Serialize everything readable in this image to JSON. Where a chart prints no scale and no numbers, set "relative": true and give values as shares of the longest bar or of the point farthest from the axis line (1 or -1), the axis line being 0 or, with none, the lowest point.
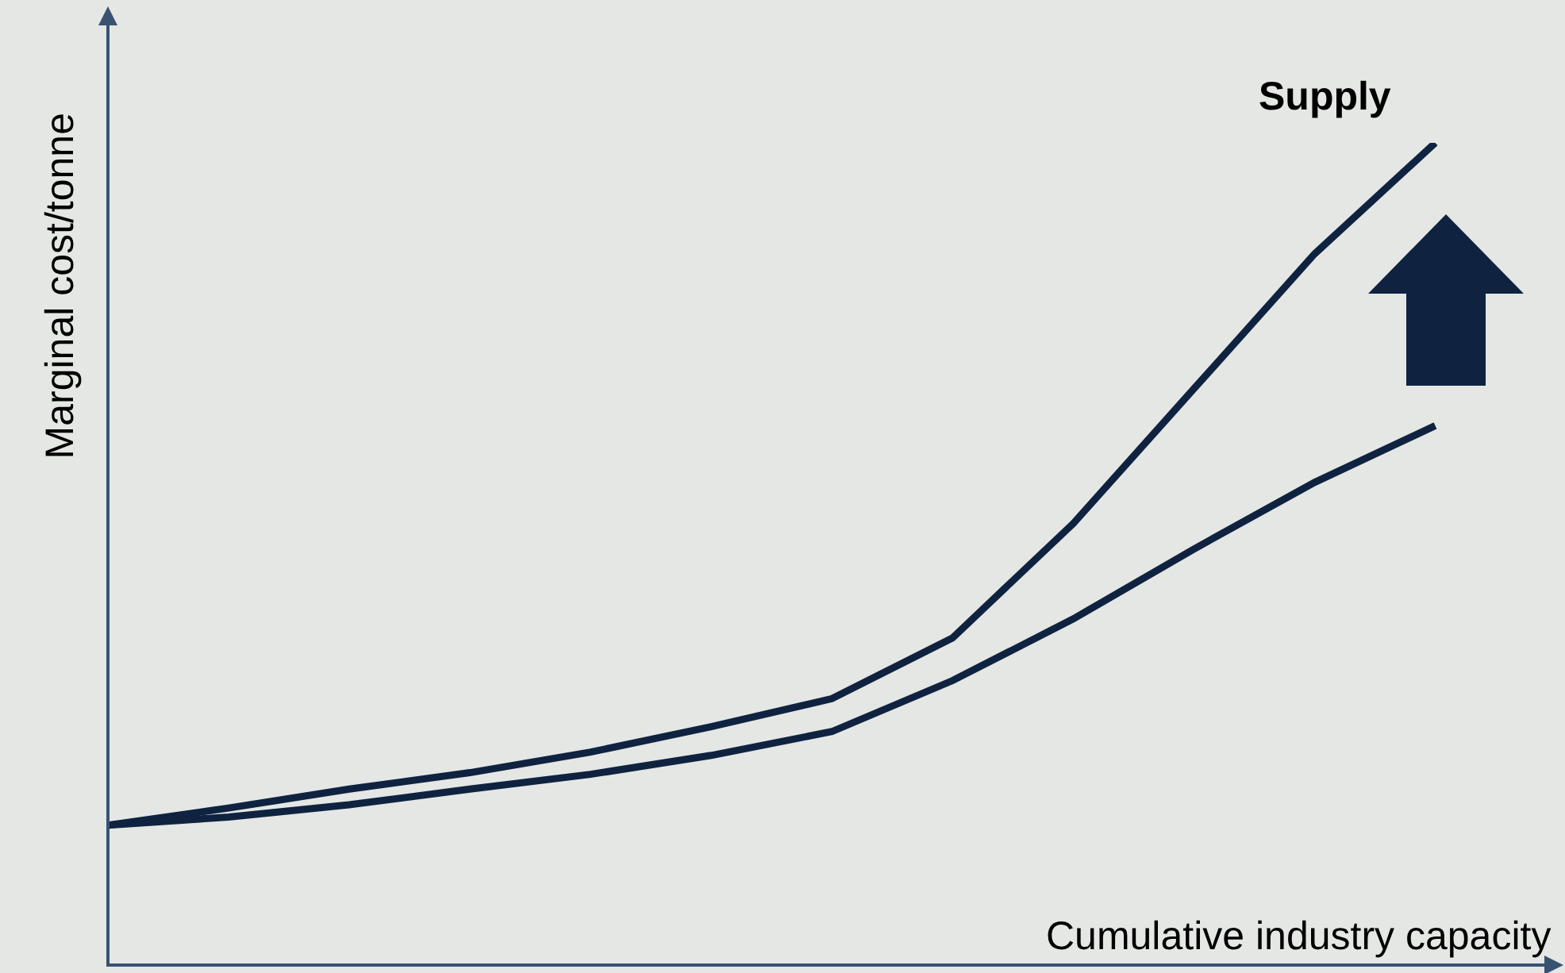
{
  "chart_data": {
    "type": "line",
    "relative": true,
    "xlabel": "Cumulative industry capacity",
    "ylabel": "Marginal cost/tonne",
    "annotations": [
      "Supply"
    ],
    "categories": [
      null,
      null,
      null,
      null,
      null,
      null,
      null,
      null,
      null,
      null,
      null,
      null
    ],
    "series": [
      {
        "color": "#0f2340",
        "values": [
          0.17,
          0.191,
          0.214,
          0.234,
          0.259,
          0.29,
          0.324,
          0.398,
          0.537,
          0.701,
          0.865,
          1
        ]
      },
      {
        "color": "#0f2340",
        "values": [
          0.17,
          0.18,
          0.195,
          0.214,
          0.232,
          0.255,
          0.284,
          0.346,
          0.421,
          0.506,
          0.587,
          0.656
        ]
      }
    ]
  }
}
